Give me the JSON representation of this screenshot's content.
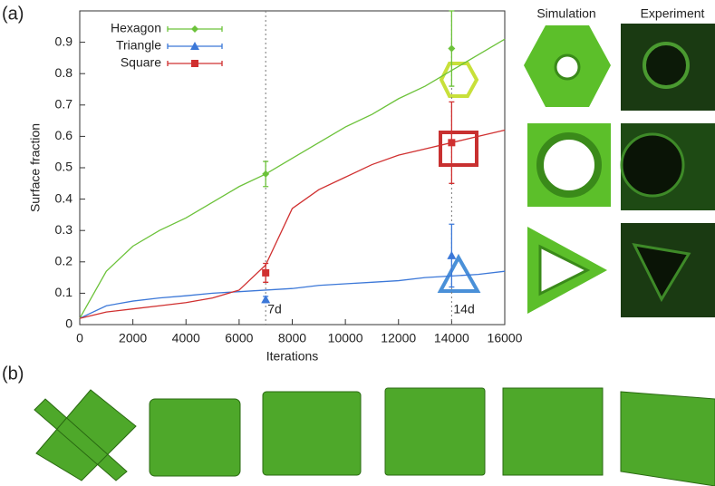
{
  "panel_labels": [
    "(a)",
    "(b)"
  ],
  "image_headers": [
    "Simulation",
    "Experiment"
  ],
  "chart_data": {
    "type": "line",
    "xlabel": "Iterations",
    "ylabel": "Surface fraction",
    "x": [
      0,
      1000,
      2000,
      3000,
      4000,
      5000,
      6000,
      7000,
      8000,
      9000,
      10000,
      11000,
      12000,
      13000,
      14000,
      15000,
      16000
    ],
    "series": [
      {
        "name": "Hexagon",
        "color": "#6cc23a",
        "values": [
          0.02,
          0.17,
          0.25,
          0.3,
          0.34,
          0.39,
          0.44,
          0.48,
          0.53,
          0.58,
          0.63,
          0.67,
          0.72,
          0.76,
          0.81,
          0.86,
          0.91
        ],
        "marker_x": [
          7000,
          14000
        ],
        "marker_values": [
          0.48,
          0.88
        ],
        "marker_errors": [
          0.04,
          0.12
        ]
      },
      {
        "name": "Triangle",
        "color": "#3c78d8",
        "values": [
          0.02,
          0.06,
          0.075,
          0.085,
          0.092,
          0.1,
          0.105,
          0.11,
          0.115,
          0.125,
          0.13,
          0.135,
          0.14,
          0.15,
          0.155,
          0.16,
          0.17
        ],
        "marker_x": [
          7000,
          14000
        ],
        "marker_values": [
          0.08,
          0.22
        ],
        "marker_errors": [
          0.01,
          0.1
        ]
      },
      {
        "name": "Square",
        "color": "#d03030",
        "values": [
          0.02,
          0.04,
          0.05,
          0.06,
          0.07,
          0.085,
          0.11,
          0.19,
          0.37,
          0.43,
          0.47,
          0.51,
          0.54,
          0.56,
          0.58,
          0.6,
          0.62
        ],
        "marker_x": [
          7000,
          14000
        ],
        "marker_values": [
          0.165,
          0.58
        ],
        "marker_errors": [
          0.03,
          0.13
        ]
      }
    ],
    "annotations": [
      {
        "text": "7d",
        "x": 7000
      },
      {
        "text": "14d",
        "x": 14000
      }
    ],
    "xlim": [
      0,
      16000
    ],
    "xticks": [
      0,
      2000,
      4000,
      6000,
      8000,
      10000,
      12000,
      14000,
      16000
    ],
    "ylim": [
      0,
      1
    ],
    "yticks": [
      0,
      0.1,
      0.2,
      0.3,
      0.4,
      0.5,
      0.6,
      0.7,
      0.8,
      0.9
    ],
    "legend": "upper left"
  }
}
